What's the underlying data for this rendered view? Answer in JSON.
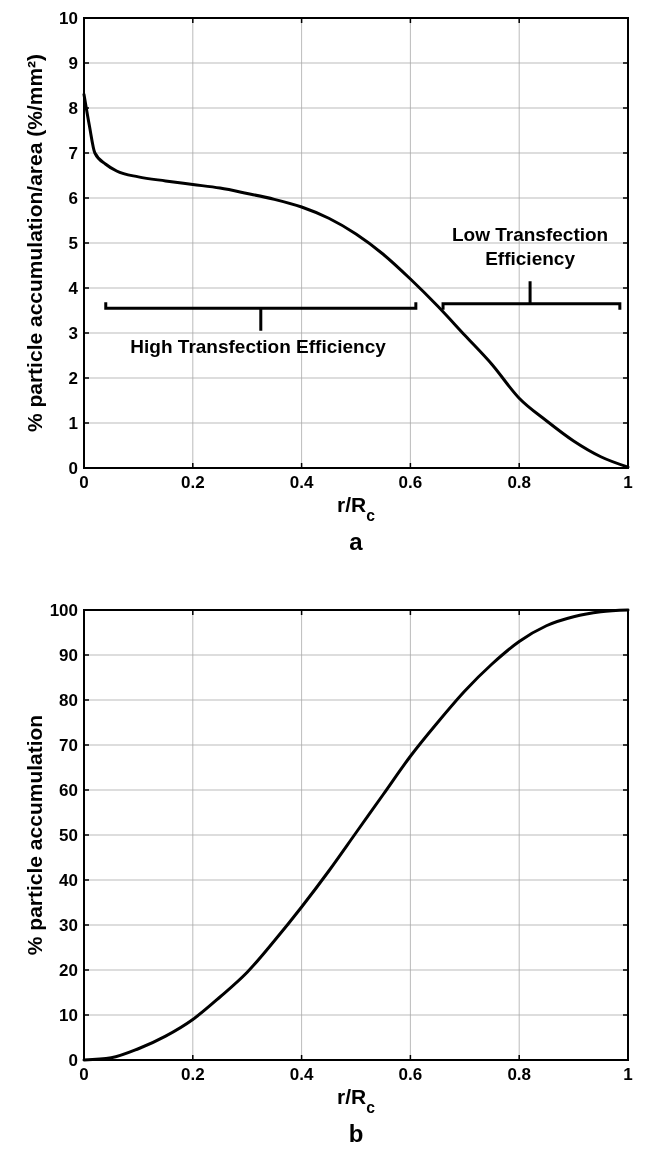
{
  "chart_data": [
    {
      "type": "line",
      "title": "a",
      "xlabel": "r/R$_{c}$",
      "ylabel": "% particle accumulation/area (%/mm²)",
      "xlim": [
        0,
        1
      ],
      "xticks": [
        0,
        0.2,
        0.4,
        0.6,
        0.8,
        1
      ],
      "ylim": [
        0,
        10
      ],
      "yticks": [
        0,
        1,
        2,
        3,
        4,
        5,
        6,
        7,
        8,
        9,
        10
      ],
      "grid": true,
      "annotations": [
        "High Transfection Efficiency",
        "Low Transfection Efficiency"
      ],
      "series": [
        {
          "color": "#000000",
          "x": [
            0,
            0.01,
            0.02,
            0.04,
            0.06,
            0.1,
            0.15,
            0.2,
            0.25,
            0.3,
            0.35,
            0.4,
            0.45,
            0.5,
            0.55,
            0.6,
            0.65,
            0.7,
            0.75,
            0.8,
            0.85,
            0.9,
            0.95,
            1
          ],
          "values": [
            8.3,
            7.6,
            7.0,
            6.75,
            6.6,
            6.47,
            6.38,
            6.3,
            6.22,
            6.1,
            5.97,
            5.8,
            5.55,
            5.2,
            4.75,
            4.2,
            3.6,
            2.95,
            2.3,
            1.55,
            1.05,
            0.6,
            0.25,
            0.02
          ]
        }
      ]
    },
    {
      "type": "line",
      "title": "b",
      "xlabel": "r/R$_{c}$",
      "ylabel": "% particle accumulation",
      "xlim": [
        0,
        1
      ],
      "xticks": [
        0,
        0.2,
        0.4,
        0.6,
        0.8,
        1
      ],
      "ylim": [
        0,
        100
      ],
      "yticks": [
        0,
        10,
        20,
        30,
        40,
        50,
        60,
        70,
        80,
        90,
        100
      ],
      "grid": true,
      "series": [
        {
          "color": "#000000",
          "x": [
            0,
            0.05,
            0.1,
            0.15,
            0.2,
            0.25,
            0.3,
            0.35,
            0.4,
            0.45,
            0.5,
            0.55,
            0.6,
            0.65,
            0.7,
            0.75,
            0.8,
            0.85,
            0.9,
            0.95,
            1
          ],
          "values": [
            0,
            0.5,
            2.5,
            5.3,
            9,
            14,
            19.5,
            26.5,
            34,
            42,
            50.5,
            59,
            67.5,
            75,
            82,
            88,
            93,
            96.5,
            98.5,
            99.6,
            100
          ]
        }
      ]
    }
  ]
}
